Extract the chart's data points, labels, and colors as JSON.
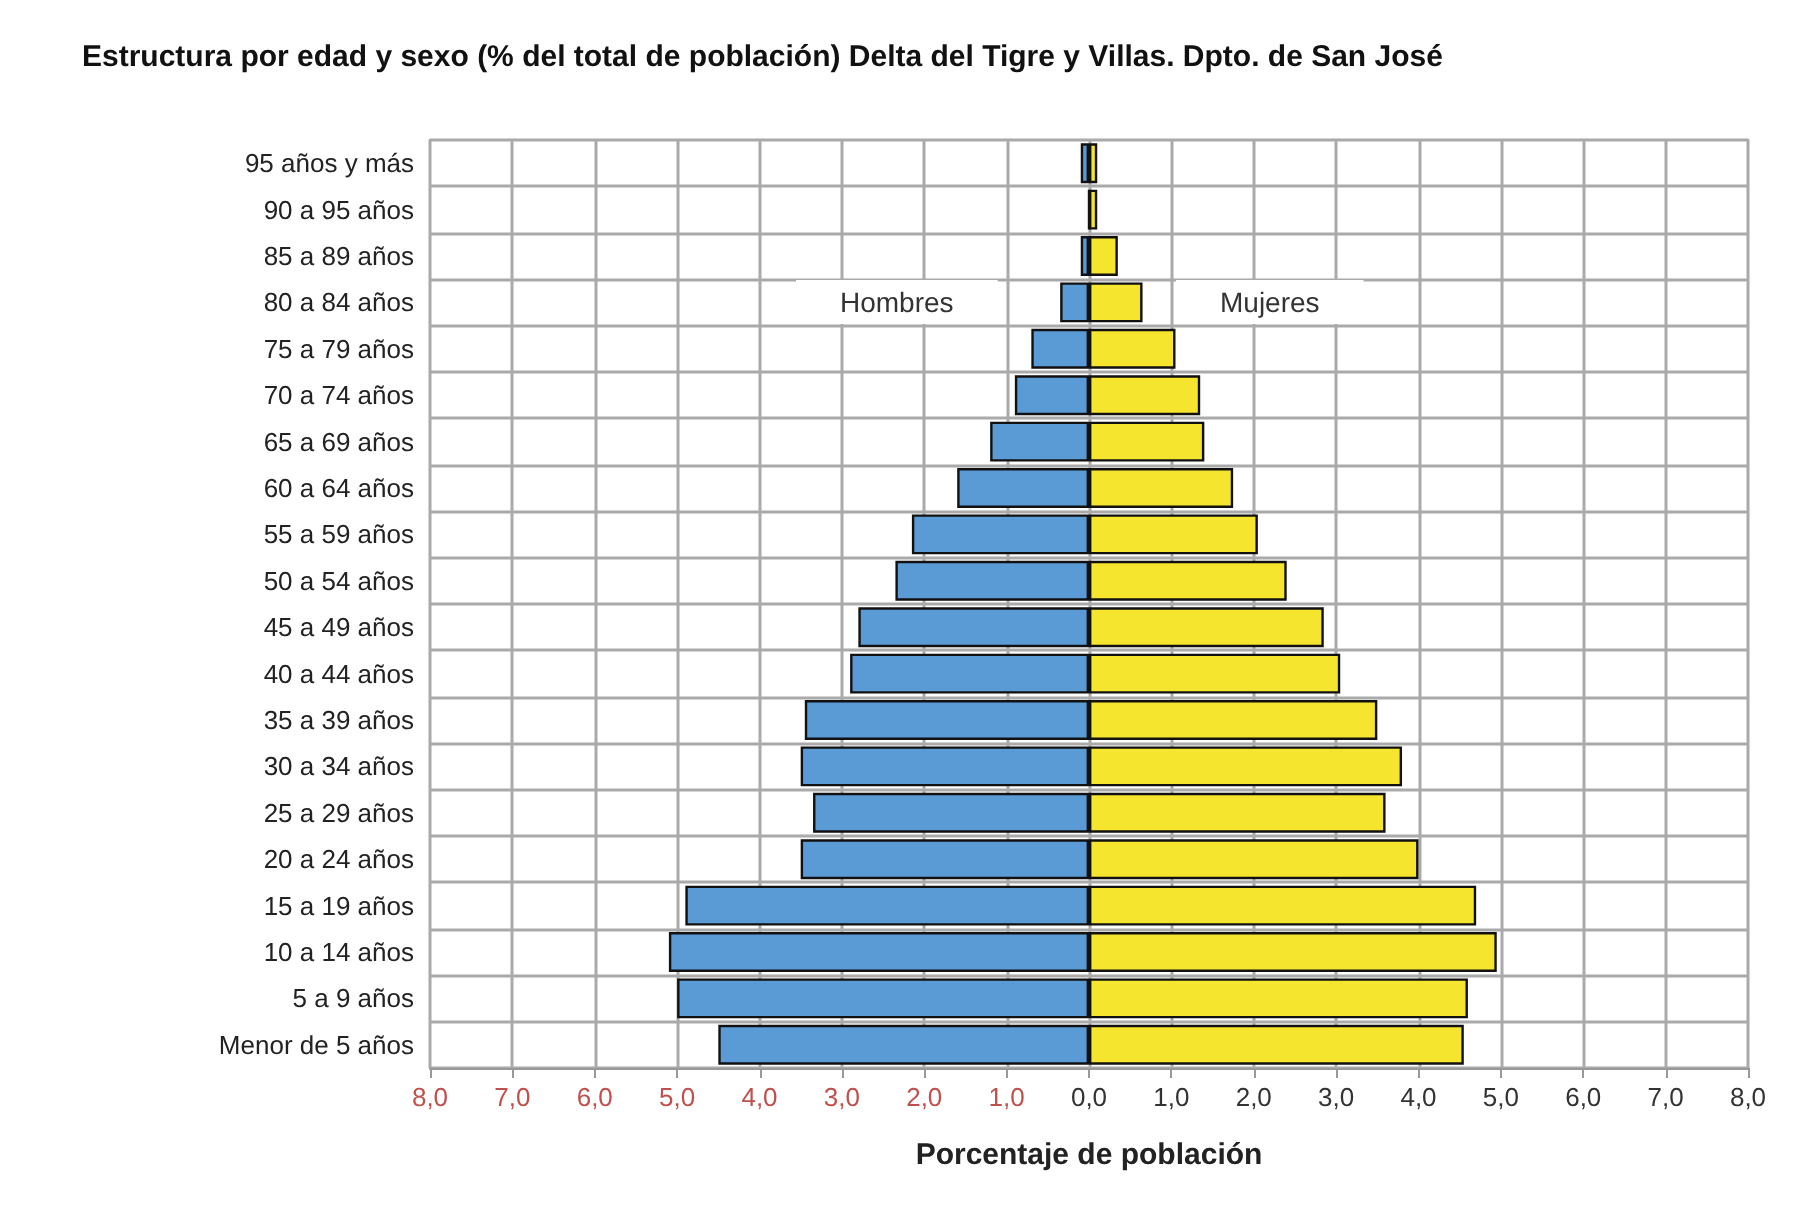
{
  "chart_data": {
    "type": "bar",
    "orientation": "horizontal",
    "stacked": true,
    "title": "Estructura por edad y sexo (% del total de población) Delta del Tigre y Villas. Dpto. de San José",
    "xlabel": "Porcentaje de población",
    "categories": [
      "95 años y más",
      "90 a 95 años",
      "85 a 89 años",
      "80 a 84 años",
      "75 a 79 años",
      "70 a 74 años",
      "65 a 69 años",
      "60 a 64 años",
      "55 a 59 años",
      "50 a 54 años",
      "45 a 49 años",
      "40 a 44 años",
      "35 a 39 años",
      "30 a 34 años",
      "25 a 29 años",
      "20 a 24 años",
      "15 a 19 años",
      "10 a 14 años",
      "5 a 9 años",
      "Menor de 5 años"
    ],
    "series": [
      {
        "name": "Hombres",
        "color": "#5b9bd5",
        "values": [
          -0.1,
          0,
          -0.1,
          -0.35,
          -0.7,
          -0.9,
          -1.2,
          -1.6,
          -2.15,
          -2.35,
          -2.8,
          -2.9,
          -3.45,
          -3.5,
          -3.35,
          -3.5,
          -4.9,
          -5.1,
          -5.0,
          -4.5
        ]
      },
      {
        "name": "Mujeres",
        "color": "#f5e52e",
        "values": [
          0.1,
          0.1,
          0.35,
          0.65,
          1.05,
          1.35,
          1.4,
          1.75,
          2.05,
          2.4,
          2.85,
          3.05,
          3.5,
          3.8,
          3.6,
          4.0,
          4.7,
          4.95,
          4.6,
          4.55
        ]
      }
    ],
    "xlim": [
      -8,
      8
    ],
    "xticks": [
      {
        "value": -8,
        "label": "8,0"
      },
      {
        "value": -7,
        "label": "7,0"
      },
      {
        "value": -6,
        "label": "6,0"
      },
      {
        "value": -5,
        "label": "5,0"
      },
      {
        "value": -4,
        "label": "4,0"
      },
      {
        "value": -3,
        "label": "3,0"
      },
      {
        "value": -2,
        "label": "2,0"
      },
      {
        "value": -1,
        "label": "1,0"
      },
      {
        "value": 0,
        "label": "0,0"
      },
      {
        "value": 1,
        "label": "1,0"
      },
      {
        "value": 2,
        "label": "2,0"
      },
      {
        "value": 3,
        "label": "3,0"
      },
      {
        "value": 4,
        "label": "4,0"
      },
      {
        "value": 5,
        "label": "5,0"
      },
      {
        "value": 6,
        "label": "6,0"
      },
      {
        "value": 7,
        "label": "7,0"
      },
      {
        "value": 8,
        "label": "8,0"
      }
    ],
    "grid": true,
    "legend": false
  }
}
